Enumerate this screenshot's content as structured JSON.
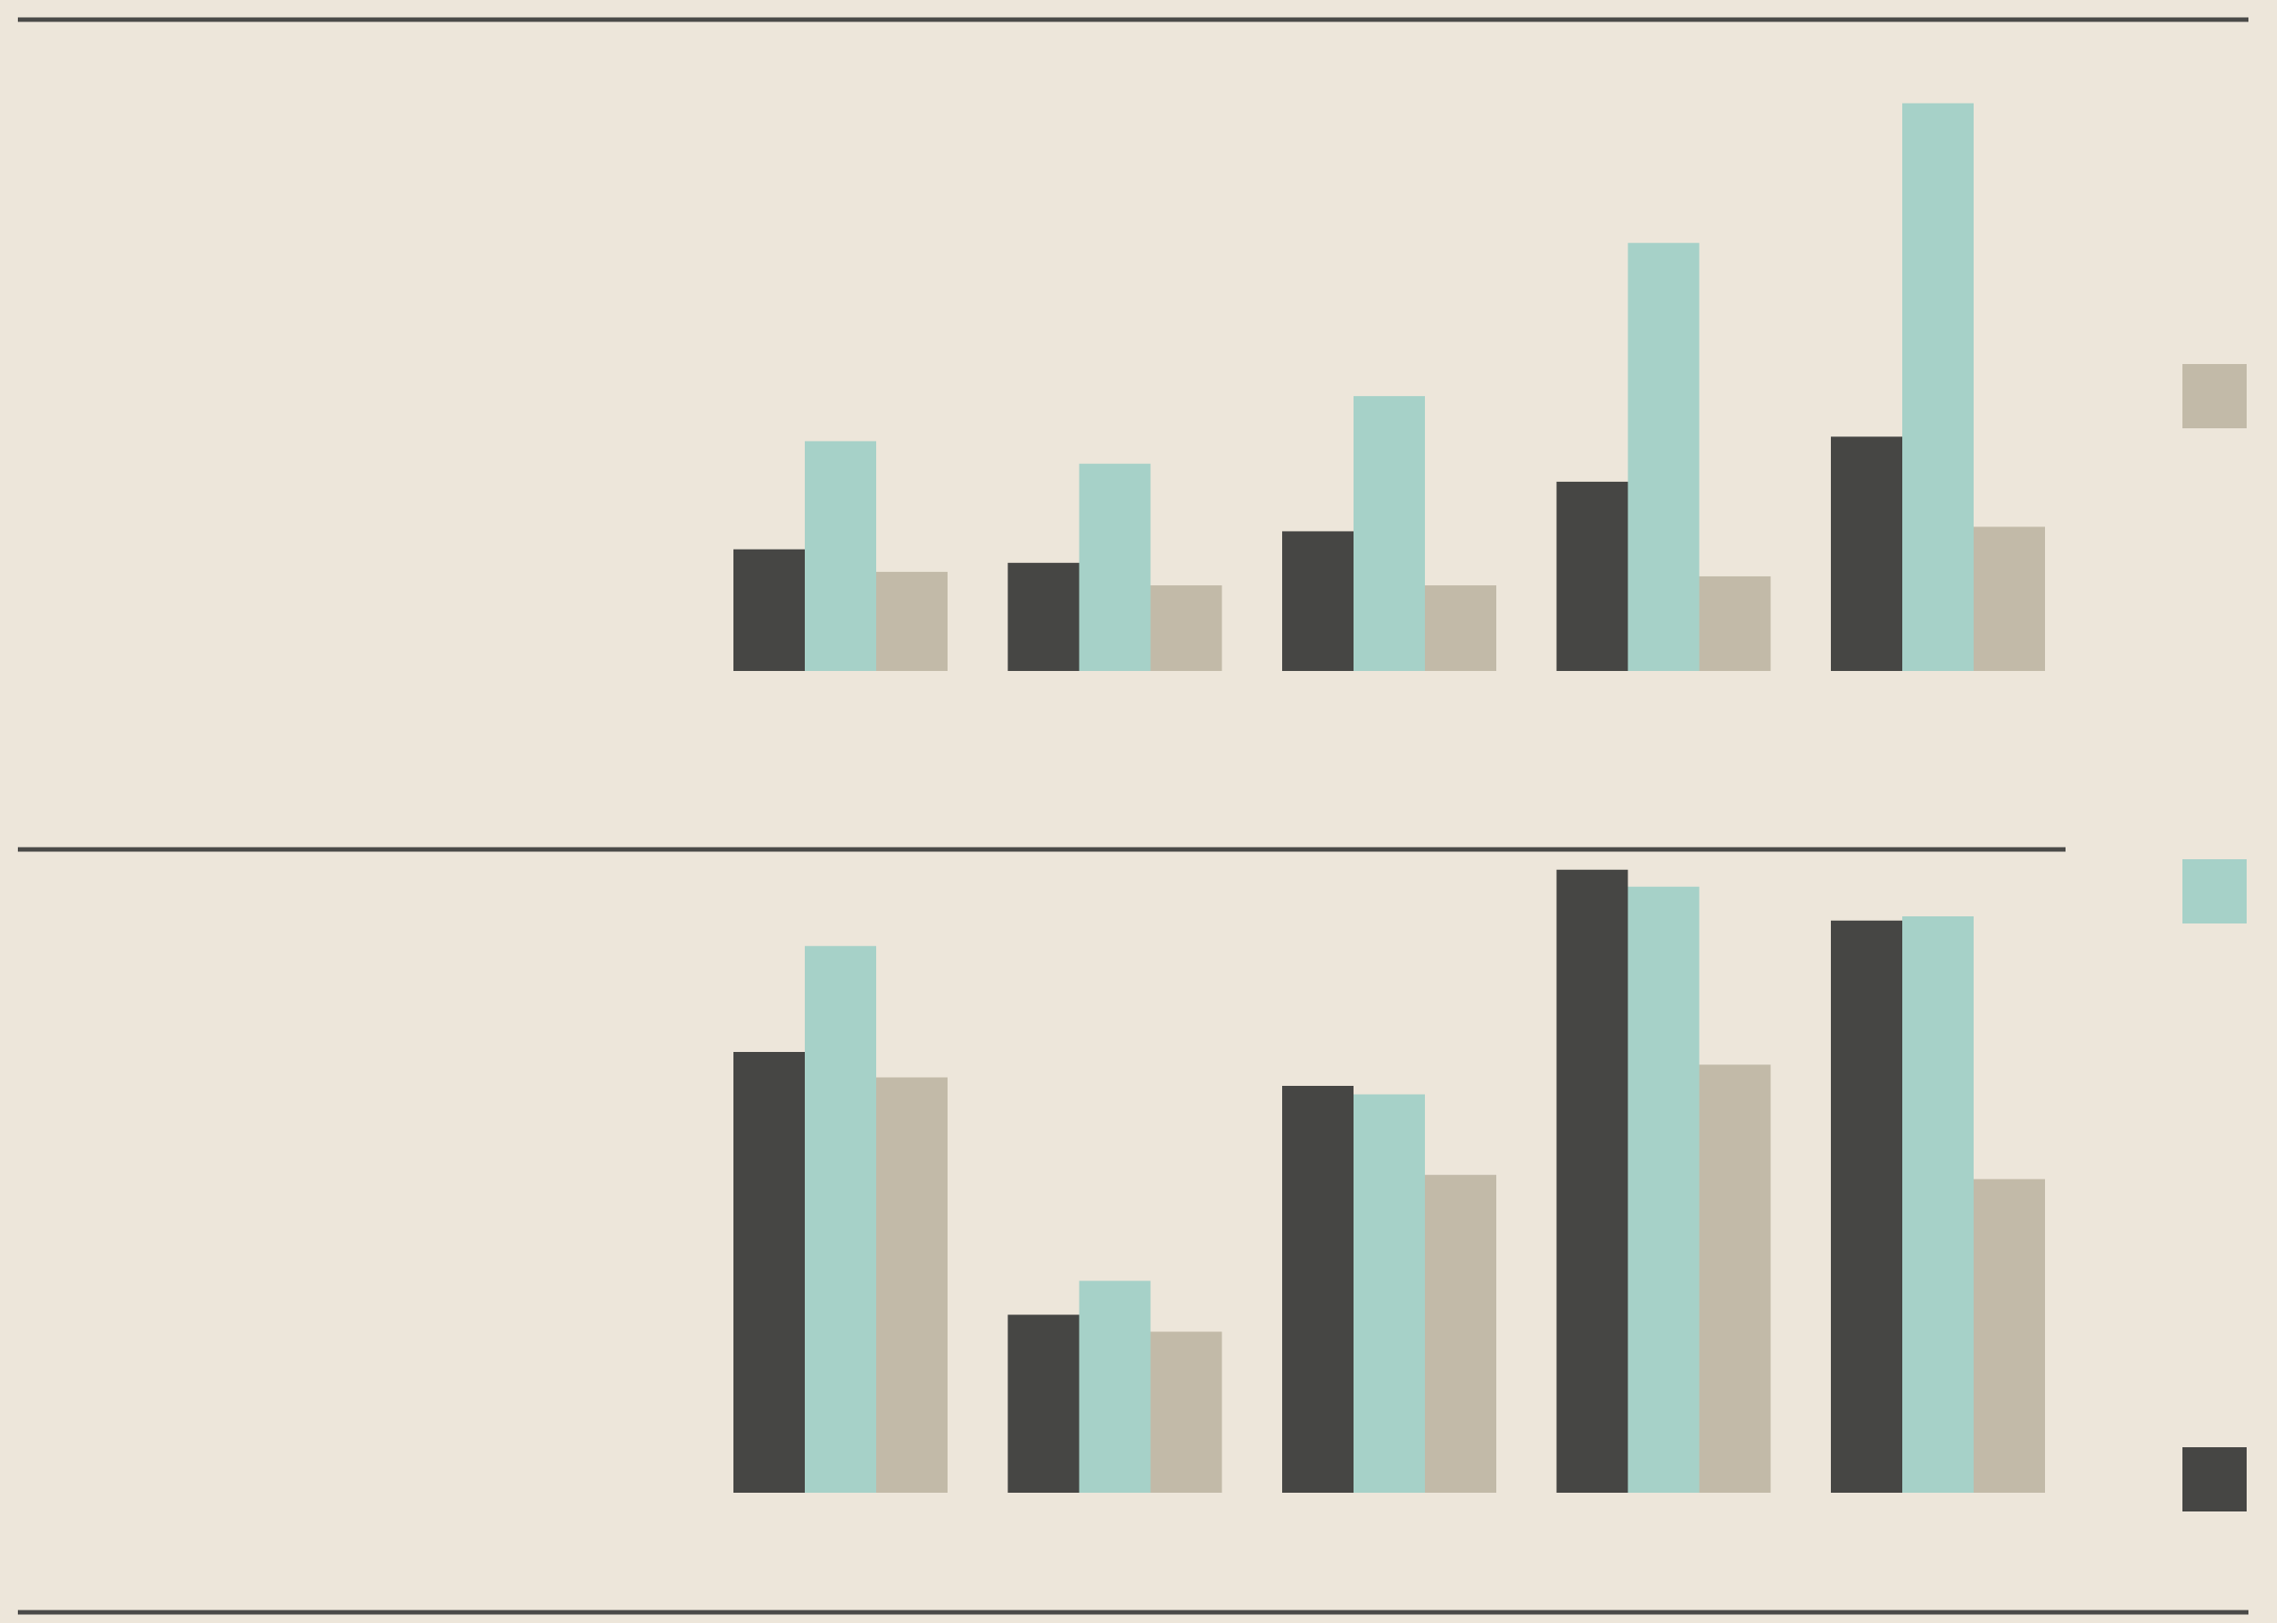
{
  "colors": {
    "background": "#ede6da",
    "rule": "#4a4a48",
    "series_dark": "#464644",
    "series_teal": "#a6d1c8",
    "series_tan": "#c2baa8"
  },
  "chart_data": [
    {
      "type": "bar",
      "panel": "top",
      "categories": [
        "",
        "",
        "",
        "",
        ""
      ],
      "series": [
        {
          "color": "#464644",
          "values": [
            2.7,
            2.4,
            3.1,
            4.2,
            5.2
          ]
        },
        {
          "color": "#a6d1c8",
          "values": [
            5.1,
            4.6,
            6.1,
            9.5,
            12.6
          ]
        },
        {
          "color": "#c2baa8",
          "values": [
            2.2,
            1.9,
            1.9,
            2.1,
            3.2
          ]
        }
      ],
      "ylim": [
        0,
        20
      ],
      "grid": false,
      "legend": "right",
      "title": "",
      "xlabel": "",
      "ylabel": ""
    },
    {
      "type": "bar",
      "panel": "bottom",
      "categories": [
        "",
        "",
        "",
        "",
        ""
      ],
      "series": [
        {
          "color": "#464644",
          "values": [
            10.4,
            4.2,
            9.6,
            14.7,
            13.5
          ]
        },
        {
          "color": "#a6d1c8",
          "values": [
            12.9,
            5.0,
            9.4,
            14.3,
            13.6
          ]
        },
        {
          "color": "#c2baa8",
          "values": [
            9.8,
            3.8,
            7.5,
            10.1,
            7.4
          ]
        }
      ],
      "ylim": [
        0,
        20
      ],
      "grid": false,
      "legend": "right",
      "title": "",
      "xlabel": "",
      "ylabel": ""
    }
  ]
}
